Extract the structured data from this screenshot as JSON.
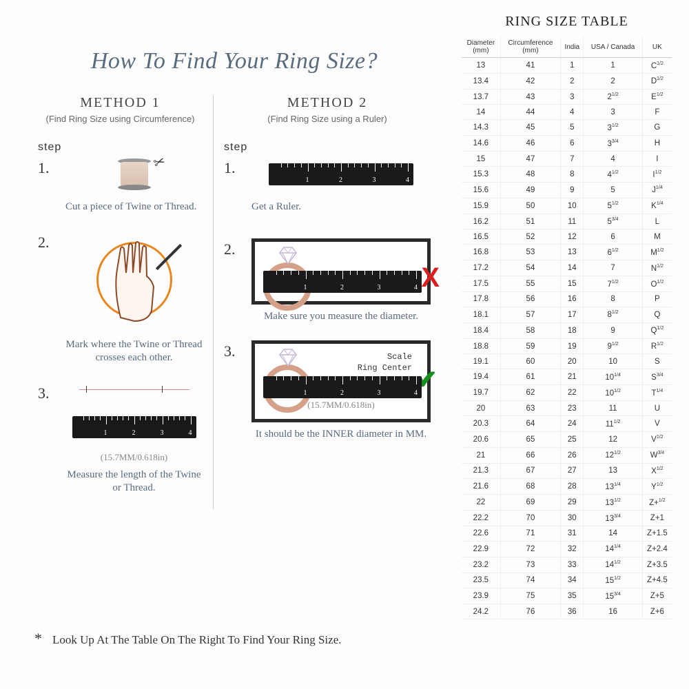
{
  "title": "How To Find Your Ring Size?",
  "table_title": "RING SIZE TABLE",
  "method1": {
    "title": "METHOD 1",
    "subtitle": "(Find Ring Size using Circumference)",
    "step_label": "step",
    "s1_num": "1.",
    "s1_text": "Cut a piece of Twine or Thread.",
    "s2_num": "2.",
    "s2_text": "Mark where the Twine or Thread crosses each other.",
    "s3_num": "3.",
    "s3_caption": "(15.7MM/0.618in)",
    "s3_text": "Measure the length of the Twine or Thread."
  },
  "method2": {
    "title": "METHOD 2",
    "subtitle": "(Find Ring Size using a Ruler)",
    "step_label": "step",
    "s1_num": "1.",
    "s1_text": "Get a Ruler.",
    "s2_num": "2.",
    "s2_text": "Make sure you measure the diameter.",
    "s3_num": "3.",
    "scale_text1": "Scale",
    "scale_text2": "Ring Center",
    "s3_caption": "(15.7MM/0.618in)",
    "s3_text": "It should be the INNER diameter in MM."
  },
  "footnote": "Look Up At The Table On The Right To Find Your Ring Size.",
  "ruler_numbers": [
    "1",
    "2",
    "3",
    "4"
  ],
  "colors": {
    "title": "#5a6b7f",
    "accent": "#e8861f",
    "ring": "#d4a088",
    "x": "#d82020",
    "check": "#1a9020",
    "ruler": "#1a1a1a"
  },
  "table": {
    "headers": [
      "Diameter (mm)",
      "Circumference (mm)",
      "India",
      "USA / Canada",
      "UK"
    ],
    "rows": [
      [
        "13",
        "41",
        "1",
        "1",
        "C<sup>1/2</sup>"
      ],
      [
        "13.4",
        "42",
        "2",
        "2",
        "D<sup>1/2</sup>"
      ],
      [
        "13.7",
        "43",
        "3",
        "2<sup>1/2</sup>",
        "E<sup>1/2</sup>"
      ],
      [
        "14",
        "44",
        "4",
        "3",
        "F"
      ],
      [
        "14.3",
        "45",
        "5",
        "3<sup>1/2</sup>",
        "G"
      ],
      [
        "14.6",
        "46",
        "6",
        "3<sup>3/4</sup>",
        "H"
      ],
      [
        "15",
        "47",
        "7",
        "4",
        "I"
      ],
      [
        "15.3",
        "48",
        "8",
        "4<sup>1/2</sup>",
        "I<sup>1/2</sup>"
      ],
      [
        "15.6",
        "49",
        "9",
        "5",
        "J<sup>1/4</sup>"
      ],
      [
        "15.9",
        "50",
        "10",
        "5<sup>1/2</sup>",
        "K<sup>1/4</sup>"
      ],
      [
        "16.2",
        "51",
        "11",
        "5<sup>3/4</sup>",
        "L"
      ],
      [
        "16.5",
        "52",
        "12",
        "6",
        "M"
      ],
      [
        "16.8",
        "53",
        "13",
        "6<sup>1/2</sup>",
        "M<sup>1/2</sup>"
      ],
      [
        "17.2",
        "54",
        "14",
        "7",
        "N<sup>1/2</sup>"
      ],
      [
        "17.5",
        "55",
        "15",
        "7<sup>1/2</sup>",
        "O<sup>1/2</sup>"
      ],
      [
        "17.8",
        "56",
        "16",
        "8",
        "P"
      ],
      [
        "18.1",
        "57",
        "17",
        "8<sup>1/2</sup>",
        "Q"
      ],
      [
        "18.4",
        "58",
        "18",
        "9",
        "Q<sup>1/2</sup>"
      ],
      [
        "18.8",
        "59",
        "19",
        "9<sup>1/2</sup>",
        "R<sup>1/2</sup>"
      ],
      [
        "19.1",
        "60",
        "20",
        "10",
        "S"
      ],
      [
        "19.4",
        "61",
        "21",
        "10<sup>1/4</sup>",
        "S<sup>3/4</sup>"
      ],
      [
        "19.7",
        "62",
        "22",
        "10<sup>1/2</sup>",
        "T<sup>1/4</sup>"
      ],
      [
        "20",
        "63",
        "23",
        "11",
        "U"
      ],
      [
        "20.3",
        "64",
        "24",
        "11<sup>1/2</sup>",
        "V"
      ],
      [
        "20.6",
        "65",
        "25",
        "12",
        "V<sup>1/2</sup>"
      ],
      [
        "21",
        "66",
        "26",
        "12<sup>1/2</sup>",
        "W<sup>3/4</sup>"
      ],
      [
        "21.3",
        "67",
        "27",
        "13",
        "X<sup>1/2</sup>"
      ],
      [
        "21.6",
        "68",
        "28",
        "13<sup>1/4</sup>",
        "Y<sup>1/2</sup>"
      ],
      [
        "22",
        "69",
        "29",
        "13<sup>1/2</sup>",
        "Z+<sup>1/2</sup>"
      ],
      [
        "22.2",
        "70",
        "30",
        "13<sup>3/4</sup>",
        "Z+1"
      ],
      [
        "22.6",
        "71",
        "31",
        "14",
        "Z+1.5"
      ],
      [
        "22.9",
        "72",
        "32",
        "14<sup>1/4</sup>",
        "Z+2.4"
      ],
      [
        "23.2",
        "73",
        "33",
        "14<sup>1/2</sup>",
        "Z+3.5"
      ],
      [
        "23.5",
        "74",
        "34",
        "15<sup>1/2</sup>",
        "Z+4.5"
      ],
      [
        "23.9",
        "75",
        "35",
        "15<sup>3/4</sup>",
        "Z+5"
      ],
      [
        "24.2",
        "76",
        "36",
        "16",
        "Z+6"
      ]
    ]
  }
}
